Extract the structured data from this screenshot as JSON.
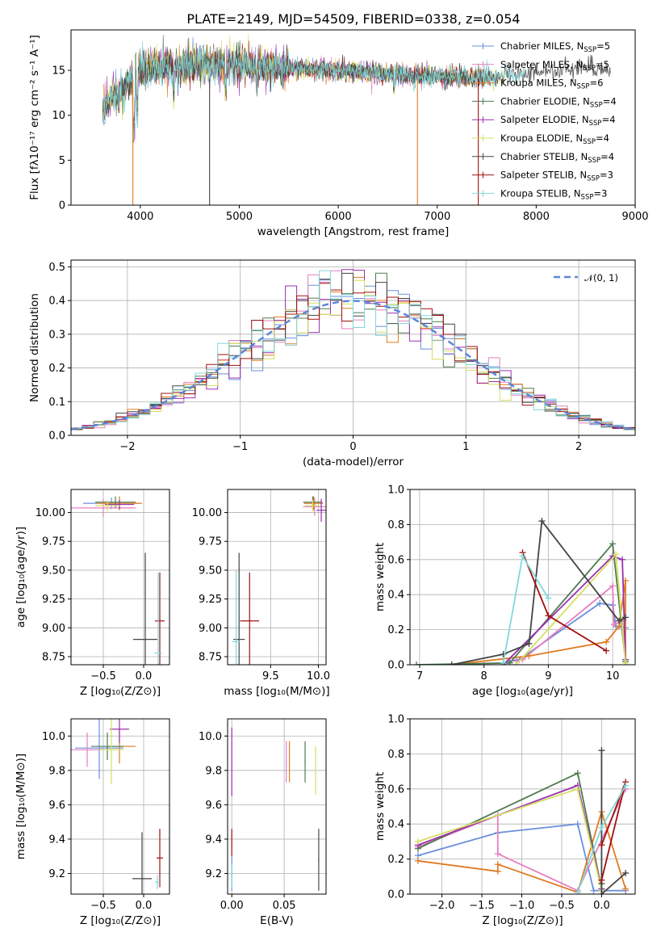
{
  "figure": {
    "title": "PLATE=2149, MJD=54509, FIBERID=0338, z=0.054"
  },
  "series": [
    {
      "name": "Chabrier MILES, N",
      "sub": "SSP",
      "n": "=5",
      "color": "#6a8fdc"
    },
    {
      "name": "Salpeter MILES, N",
      "sub": "SSP",
      "n": "=5",
      "color": "#e67fbf"
    },
    {
      "name": "Kroupa MILES, N",
      "sub": "SSP",
      "n": "=6",
      "color": "#e07b22"
    },
    {
      "name": "Chabrier ELODIE, N",
      "sub": "SSP",
      "n": "=4",
      "color": "#4f7a4f"
    },
    {
      "name": "Salpeter ELODIE, N",
      "sub": "SSP",
      "n": "=4",
      "color": "#9b30b0"
    },
    {
      "name": "Kroupa ELODIE, N",
      "sub": "SSP",
      "n": "=4",
      "color": "#d4e060"
    },
    {
      "name": "Chabrier STELIB, N",
      "sub": "SSP",
      "n": "=4",
      "color": "#444444"
    },
    {
      "name": "Salpeter STELIB, N",
      "sub": "SSP",
      "n": "=3",
      "color": "#a01010"
    },
    {
      "name": "Kroupa STELIB, N",
      "sub": "SSP",
      "n": "=3",
      "color": "#80d8dc"
    }
  ],
  "chart_data": [
    {
      "id": "spectrum",
      "type": "line",
      "xlabel": "wavelength [Angstrom, rest frame]",
      "ylabel": "Flux [fλ10⁻¹⁷ erg cm⁻² s⁻¹ A⁻¹]",
      "xlim": [
        3300,
        9000
      ],
      "ylim": [
        0,
        19.5
      ],
      "xticks": [
        "4000",
        "5000",
        "6000",
        "7000",
        "8000",
        "9000"
      ],
      "yticks": [
        "0",
        "5",
        "10",
        "15"
      ],
      "continuum": [
        [
          3600,
          10
        ],
        [
          3700,
          12
        ],
        [
          3800,
          12.5
        ],
        [
          3900,
          14
        ],
        [
          4000,
          15
        ],
        [
          4200,
          15.3
        ],
        [
          4500,
          15.6
        ],
        [
          5000,
          15.6
        ],
        [
          5500,
          15.3
        ],
        [
          6000,
          15
        ],
        [
          6500,
          14.6
        ],
        [
          7000,
          14.3
        ],
        [
          7500,
          14.2
        ],
        [
          8000,
          14.8
        ],
        [
          8500,
          15.3
        ],
        [
          8700,
          15.3
        ]
      ]
    },
    {
      "id": "residuals",
      "type": "line",
      "xlabel": "(data-model)/error",
      "ylabel": "Normed distribution",
      "legend": "𝒩(0, 1)",
      "xlim": [
        -2.5,
        2.5
      ],
      "ylim": [
        0,
        0.52
      ],
      "xticks": [
        "−2",
        "−1",
        "0",
        "1",
        "2"
      ],
      "yticks": [
        "0.0",
        "0.1",
        "0.2",
        "0.3",
        "0.4",
        "0.5"
      ]
    },
    {
      "id": "age_vs_z",
      "type": "scatter",
      "xlabel": "Z [log₁₀(Z/Z⊙)]",
      "ylabel": "age  [log₁₀(age/yr)]",
      "xlim": [
        -0.9,
        0.32
      ],
      "ylim": [
        8.68,
        10.2
      ],
      "xticks": [
        "−0.5",
        "0.0"
      ],
      "yticks": [
        "8.75",
        "9.00",
        "9.25",
        "9.50",
        "9.75",
        "10.00"
      ],
      "points": [
        {
          "s": 0,
          "x": -0.4,
          "y": 10.08,
          "xerr": 0.35,
          "yerr": 0.05
        },
        {
          "s": 1,
          "x": -0.5,
          "y": 10.04,
          "xerr": 0.4,
          "yerr": 0.08
        },
        {
          "s": 2,
          "x": -0.3,
          "y": 10.08,
          "xerr": 0.28,
          "yerr": 0.06
        },
        {
          "s": 3,
          "x": -0.35,
          "y": 10.09,
          "xerr": 0.25,
          "yerr": 0.05
        },
        {
          "s": 4,
          "x": -0.3,
          "y": 10.07,
          "xerr": 0.18,
          "yerr": 0.04
        },
        {
          "s": 5,
          "x": -0.45,
          "y": 10.06,
          "xerr": 0.15,
          "yerr": 0.05
        },
        {
          "s": 6,
          "x": 0.02,
          "y": 8.9,
          "xerr": 0.15,
          "yerr": 0.75
        },
        {
          "s": 7,
          "x": 0.2,
          "y": 9.06,
          "xerr": 0.06,
          "yerr": 0.42
        },
        {
          "s": 8,
          "x": 0.18,
          "y": 8.78,
          "xerr": 0.05,
          "yerr": 0.7
        }
      ]
    },
    {
      "id": "age_vs_mass",
      "type": "scatter",
      "xlabel": "mass [log₁₀(M/M⊙)]",
      "ylabel": "",
      "xlim": [
        9.05,
        10.08
      ],
      "ylim": [
        8.68,
        10.2
      ],
      "xticks": [
        "9.5",
        "10.0"
      ],
      "yticks": [
        "8.75",
        "9.00",
        "9.25",
        "9.50",
        "9.75",
        "10.00"
      ],
      "points": [
        {
          "s": 0,
          "x": 9.95,
          "y": 10.08,
          "xerr": 0.1,
          "yerr": 0.05
        },
        {
          "s": 1,
          "x": 9.96,
          "y": 10.05,
          "xerr": 0.12,
          "yerr": 0.08
        },
        {
          "s": 2,
          "x": 9.95,
          "y": 10.08,
          "xerr": 0.1,
          "yerr": 0.06
        },
        {
          "s": 3,
          "x": 9.94,
          "y": 10.09,
          "xerr": 0.1,
          "yerr": 0.05
        },
        {
          "s": 4,
          "x": 10.03,
          "y": 10.02,
          "xerr": 0.05,
          "yerr": 0.1
        },
        {
          "s": 5,
          "x": 9.94,
          "y": 10.06,
          "xerr": 0.08,
          "yerr": 0.05
        },
        {
          "s": 6,
          "x": 9.17,
          "y": 8.9,
          "xerr": 0.06,
          "yerr": 0.75
        },
        {
          "s": 7,
          "x": 9.28,
          "y": 9.06,
          "xerr": 0.1,
          "yerr": 0.42
        },
        {
          "s": 8,
          "x": 9.14,
          "y": 8.88,
          "xerr": 0.04,
          "yerr": 0.62
        }
      ]
    },
    {
      "id": "weight_vs_age",
      "type": "line",
      "xlabel": "age  [log₁₀(age/yr)]",
      "ylabel": "mass weight",
      "xlim": [
        6.85,
        10.35
      ],
      "ylim": [
        0,
        1.0
      ],
      "xticks": [
        "7",
        "8",
        "9",
        "10"
      ],
      "yticks": [
        "0.0",
        "0.2",
        "0.4",
        "0.6",
        "0.8",
        "1.0"
      ],
      "lines": [
        {
          "s": 0,
          "pts": [
            [
              8.3,
              0.0
            ],
            [
              8.4,
              0.02
            ],
            [
              8.55,
              0.03
            ],
            [
              9.8,
              0.35
            ],
            [
              10.0,
              0.34
            ],
            [
              10.05,
              0.22
            ],
            [
              10.2,
              0.21
            ]
          ]
        },
        {
          "s": 1,
          "pts": [
            [
              8.5,
              0.02
            ],
            [
              8.6,
              0.03
            ],
            [
              10.0,
              0.45
            ],
            [
              10.02,
              0.23
            ],
            [
              10.15,
              0.25
            ],
            [
              10.2,
              0.02
            ]
          ]
        },
        {
          "s": 2,
          "pts": [
            [
              7.5,
              0.0
            ],
            [
              8.7,
              0.05
            ],
            [
              9.9,
              0.13
            ],
            [
              10.1,
              0.22
            ],
            [
              10.2,
              0.48
            ],
            [
              10.2,
              0.02
            ]
          ]
        },
        {
          "s": 3,
          "pts": [
            [
              6.95,
              0.0
            ],
            [
              8.4,
              0.01
            ],
            [
              10.0,
              0.69
            ],
            [
              10.2,
              0.02
            ]
          ]
        },
        {
          "s": 4,
          "pts": [
            [
              8.3,
              0.0
            ],
            [
              10.0,
              0.62
            ],
            [
              10.15,
              0.6
            ],
            [
              10.2,
              0.03
            ]
          ]
        },
        {
          "s": 5,
          "pts": [
            [
              8.5,
              0.0
            ],
            [
              10.05,
              0.63
            ],
            [
              10.2,
              0.01
            ]
          ]
        },
        {
          "s": 6,
          "pts": [
            [
              7.5,
              0.0
            ],
            [
              8.3,
              0.06
            ],
            [
              8.7,
              0.12
            ],
            [
              8.9,
              0.82
            ],
            [
              10.1,
              0.25
            ],
            [
              10.2,
              0.27
            ]
          ]
        },
        {
          "s": 7,
          "pts": [
            [
              8.6,
              0.64
            ],
            [
              9.0,
              0.28
            ],
            [
              9.9,
              0.08
            ]
          ]
        },
        {
          "s": 8,
          "pts": [
            [
              8.3,
              0.01
            ],
            [
              8.6,
              0.62
            ],
            [
              9.0,
              0.38
            ]
          ]
        }
      ]
    },
    {
      "id": "mass_vs_z",
      "type": "scatter",
      "xlabel": "Z [log₁₀(Z/Z⊙)]",
      "ylabel": "mass [log₁₀(M/M⊙)]",
      "xlim": [
        -0.9,
        0.32
      ],
      "ylim": [
        9.08,
        10.1
      ],
      "xticks": [
        "−0.5",
        "0.0"
      ],
      "yticks": [
        "9.2",
        "9.4",
        "9.6",
        "9.8",
        "10.0"
      ],
      "points": [
        {
          "s": 0,
          "x": -0.55,
          "y": 9.93,
          "xerr": 0.3,
          "yerr": 0.18
        },
        {
          "s": 1,
          "x": -0.7,
          "y": 9.92,
          "xerr": 0.2,
          "yerr": 0.1
        },
        {
          "s": 2,
          "x": -0.3,
          "y": 9.94,
          "xerr": 0.2,
          "yerr": 0.1
        },
        {
          "s": 3,
          "x": -0.45,
          "y": 9.94,
          "xerr": 0.2,
          "yerr": 0.08
        },
        {
          "s": 4,
          "x": -0.3,
          "y": 10.04,
          "xerr": 0.12,
          "yerr": 0.08
        },
        {
          "s": 5,
          "x": -0.4,
          "y": 9.92,
          "xerr": 0.15,
          "yerr": 0.2
        },
        {
          "s": 6,
          "x": -0.02,
          "y": 9.17,
          "xerr": 0.12,
          "yerr": 0.27
        },
        {
          "s": 7,
          "x": 0.2,
          "y": 9.29,
          "xerr": 0.04,
          "yerr": 0.17
        },
        {
          "s": 8,
          "x": 0.17,
          "y": 9.15,
          "xerr": 0.03,
          "yerr": 0.04
        }
      ]
    },
    {
      "id": "mass_vs_ebv",
      "type": "scatter",
      "xlabel": "E(B-V)",
      "ylabel": "",
      "xlim": [
        -0.004,
        0.09
      ],
      "ylim": [
        9.08,
        10.1
      ],
      "xticks": [
        "0.00",
        "0.05"
      ],
      "yticks": [
        "9.2",
        "9.4",
        "9.6",
        "9.8",
        "10.0"
      ],
      "points": [
        {
          "s": 0,
          "x": 0.0,
          "y": 9.2,
          "xerr": 0.0005,
          "yerr": 0.1
        },
        {
          "s": 1,
          "x": 0.052,
          "y": 9.85,
          "xerr": 0.0005,
          "yerr": 0.12
        },
        {
          "s": 2,
          "x": 0.055,
          "y": 9.85,
          "xerr": 0.0005,
          "yerr": 0.12
        },
        {
          "s": 3,
          "x": 0.07,
          "y": 9.85,
          "xerr": 0.0005,
          "yerr": 0.12
        },
        {
          "s": 4,
          "x": 0.0,
          "y": 9.85,
          "xerr": 0.0005,
          "yerr": 0.2
        },
        {
          "s": 5,
          "x": 0.08,
          "y": 9.8,
          "xerr": 0.0005,
          "yerr": 0.14
        },
        {
          "s": 6,
          "x": 0.083,
          "y": 9.28,
          "xerr": 0.0005,
          "yerr": 0.18
        },
        {
          "s": 7,
          "x": 0.0,
          "y": 9.38,
          "xerr": 0.0005,
          "yerr": 0.08
        },
        {
          "s": 8,
          "x": 0.0,
          "y": 9.18,
          "xerr": 0.0005,
          "yerr": 0.07
        }
      ]
    },
    {
      "id": "weight_vs_z",
      "type": "line",
      "xlabel": "Z [log₁₀(Z/Z⊙)]",
      "ylabel": "mass weight",
      "xlim": [
        -2.4,
        0.42
      ],
      "ylim": [
        0,
        1.0
      ],
      "xticks": [
        "−2.0",
        "−1.5",
        "−1.0",
        "−0.5",
        "0.0"
      ],
      "yticks": [
        "0.0",
        "0.2",
        "0.4",
        "0.6",
        "0.8",
        "1.0"
      ],
      "lines": [
        {
          "s": 0,
          "pts": [
            [
              -2.3,
              0.22
            ],
            [
              -1.3,
              0.35
            ],
            [
              -0.3,
              0.4
            ],
            [
              -0.1,
              0.02
            ],
            [
              0.3,
              0.02
            ]
          ]
        },
        {
          "s": 1,
          "pts": [
            [
              -2.3,
              0.27
            ],
            [
              -1.3,
              0.45
            ],
            [
              -1.3,
              0.23
            ],
            [
              -0.3,
              0.02
            ],
            [
              0.3,
              0.6
            ]
          ]
        },
        {
          "s": 2,
          "pts": [
            [
              -2.3,
              0.19
            ],
            [
              -1.3,
              0.13
            ],
            [
              -1.3,
              0.17
            ],
            [
              -0.3,
              0.01
            ],
            [
              0.0,
              0.47
            ],
            [
              0.3,
              0.03
            ]
          ]
        },
        {
          "s": 3,
          "pts": [
            [
              -2.3,
              0.26
            ],
            [
              -0.3,
              0.69
            ],
            [
              0.0,
              0.03
            ]
          ]
        },
        {
          "s": 4,
          "pts": [
            [
              -2.3,
              0.28
            ],
            [
              -0.3,
              0.62
            ],
            [
              0.0,
              0.03
            ]
          ]
        },
        {
          "s": 5,
          "pts": [
            [
              -2.3,
              0.3
            ],
            [
              -0.3,
              0.6
            ],
            [
              0.0,
              0.02
            ]
          ]
        },
        {
          "s": 6,
          "pts": [
            [
              0.0,
              0.82
            ],
            [
              0.0,
              0.06
            ],
            [
              0.0,
              0.0
            ],
            [
              0.3,
              0.12
            ]
          ]
        },
        {
          "s": 7,
          "pts": [
            [
              0.0,
              0.08
            ],
            [
              0.3,
              0.64
            ],
            [
              0.0,
              0.28
            ]
          ]
        },
        {
          "s": 8,
          "pts": [
            [
              -0.3,
              0.01
            ],
            [
              0.0,
              0.38
            ],
            [
              0.3,
              0.62
            ]
          ]
        }
      ]
    }
  ]
}
